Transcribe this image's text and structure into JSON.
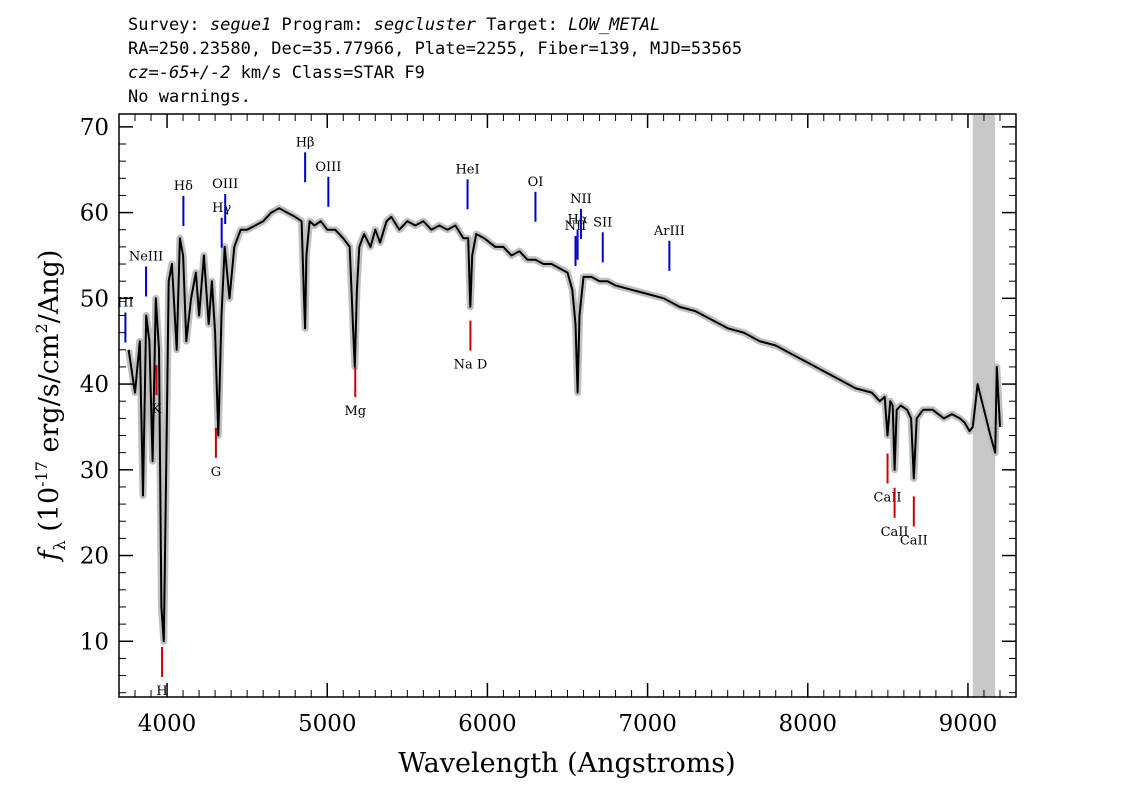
{
  "header": {
    "line1": {
      "survey_prefix": "Survey: ",
      "survey": "segue1",
      "program_prefix": " Program: ",
      "program": "segcluster",
      "target_prefix": " Target: ",
      "target": "LOW_METAL"
    },
    "line2": "RA=250.23580, Dec=35.77966, Plate=2255, Fiber=139, MJD=53565",
    "line3": {
      "cz_label": "cz=",
      "cz_value": "-65+/-2",
      "rest": " km/s Class=STAR F9"
    },
    "line4": "No warnings."
  },
  "chart_data": {
    "type": "line",
    "xlabel": "Wavelength (Angstroms)",
    "ylabel": {
      "f": "f",
      "sub": "λ",
      "pre": " (10",
      "exp1": "-17",
      "mid": " erg/s/cm",
      "exp2": "2",
      "post": "/Ang)"
    },
    "xlim": [
      3700,
      9300
    ],
    "ylim": [
      3.5,
      71.5
    ],
    "x_ticks": [
      4000,
      5000,
      6000,
      7000,
      8000,
      9000
    ],
    "y_ticks": [
      10,
      20,
      30,
      40,
      50,
      60,
      70
    ],
    "x_tick_labels": [
      "4000",
      "5000",
      "6000",
      "7000",
      "8000",
      "9000"
    ],
    "y_tick_labels": [
      "10",
      "20",
      "30",
      "40",
      "50",
      "60",
      "70"
    ],
    "masked_region": [
      9030,
      9170
    ],
    "colors": {
      "spectrum": "#000000",
      "error_band": "#c0c0c0",
      "emission": "#0000cc",
      "absorption": "#cc0000",
      "mask": "#c8c8c8"
    },
    "spectrum": {
      "x": [
        3760,
        3800,
        3830,
        3850,
        3870,
        3890,
        3910,
        3930,
        3950,
        3965,
        3980,
        3995,
        4010,
        4030,
        4060,
        4080,
        4100,
        4120,
        4150,
        4180,
        4200,
        4230,
        4260,
        4280,
        4300,
        4320,
        4340,
        4360,
        4390,
        4420,
        4460,
        4500,
        4550,
        4600,
        4650,
        4700,
        4750,
        4800,
        4840,
        4855,
        4862,
        4870,
        4890,
        4920,
        4960,
        5000,
        5050,
        5100,
        5140,
        5160,
        5172,
        5185,
        5200,
        5230,
        5270,
        5300,
        5330,
        5370,
        5400,
        5450,
        5500,
        5550,
        5600,
        5650,
        5700,
        5750,
        5800,
        5850,
        5880,
        5893,
        5905,
        5930,
        5980,
        6050,
        6100,
        6150,
        6200,
        6250,
        6300,
        6350,
        6400,
        6450,
        6500,
        6530,
        6550,
        6563,
        6575,
        6600,
        6650,
        6700,
        6750,
        6800,
        6900,
        7000,
        7100,
        7200,
        7300,
        7400,
        7500,
        7600,
        7700,
        7800,
        7900,
        8000,
        8100,
        8200,
        8300,
        8400,
        8450,
        8480,
        8498,
        8515,
        8530,
        8542,
        8555,
        8580,
        8620,
        8645,
        8662,
        8680,
        8720,
        8780,
        8850,
        8900,
        8950,
        8980,
        9010,
        9030,
        9060,
        9100,
        9140,
        9170,
        9180,
        9200
      ],
      "y": [
        44,
        39,
        45,
        27,
        48,
        45,
        31,
        50,
        44,
        14,
        10,
        31,
        52,
        54,
        44,
        57,
        55,
        45,
        50,
        53,
        48,
        55,
        47,
        52,
        46,
        34,
        48,
        56,
        50,
        56,
        58,
        58,
        58.5,
        59,
        60,
        60.5,
        60,
        59.5,
        59,
        50,
        46.5,
        55,
        59,
        58.5,
        59,
        58,
        58,
        57,
        56,
        47,
        42,
        51,
        56,
        57.5,
        56,
        58,
        56.5,
        59,
        59.5,
        58,
        59,
        58.5,
        59,
        58,
        58.5,
        58,
        58.5,
        57,
        57,
        49,
        55,
        57.5,
        57,
        56,
        56,
        55,
        55.5,
        54.5,
        54.5,
        54,
        54,
        53.5,
        53,
        51,
        47,
        39,
        48,
        52.5,
        52.5,
        52,
        52,
        51.5,
        51,
        50.5,
        50,
        49,
        48.5,
        47.5,
        46.5,
        46,
        45,
        44.5,
        43.5,
        42.5,
        41.5,
        40.5,
        39.5,
        39,
        38,
        38.5,
        34,
        38,
        37.5,
        30,
        37,
        37.5,
        37,
        36,
        29,
        36,
        37,
        37,
        36,
        36.5,
        36,
        35.5,
        34.5,
        35,
        40,
        37,
        34,
        32,
        42,
        35
      ]
    },
    "emission_lines": [
      {
        "label": "HI",
        "x": 3740
      },
      {
        "label": "NeIII",
        "x": 3869
      },
      {
        "label": "Hδ",
        "x": 4102
      },
      {
        "label": "Hγ",
        "x": 4341
      },
      {
        "label": "OIII",
        "x": 4363
      },
      {
        "label": "Hβ",
        "x": 4862
      },
      {
        "label": "OIII",
        "x": 5007
      },
      {
        "label": "HeI",
        "x": 5876
      },
      {
        "label": "OI",
        "x": 6300
      },
      {
        "label": "NII",
        "x": 6550
      },
      {
        "label": "Hα",
        "x": 6563
      },
      {
        "label": "NII",
        "x": 6584
      },
      {
        "label": "SII",
        "x": 6720
      },
      {
        "label": "ArIII",
        "x": 7136
      }
    ],
    "absorption_lines": [
      {
        "label": "K",
        "x": 3934
      },
      {
        "label": "H",
        "x": 3969
      },
      {
        "label": "G",
        "x": 4305
      },
      {
        "label": "Mg",
        "x": 5175
      },
      {
        "label": "Na D",
        "x": 5894
      },
      {
        "label": "CaII",
        "x": 8498
      },
      {
        "label": "CaII",
        "x": 8542
      },
      {
        "label": "CaII",
        "x": 8662
      }
    ]
  }
}
